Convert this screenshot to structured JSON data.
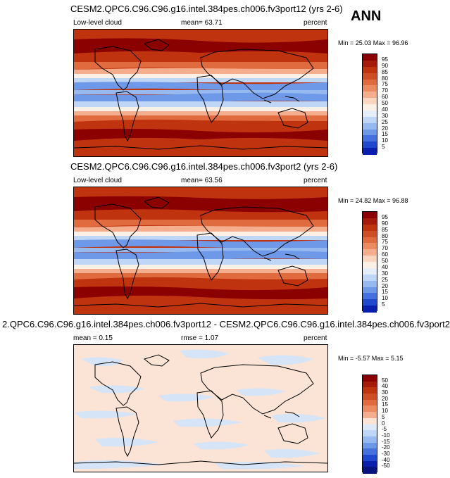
{
  "season": "ANN",
  "panels": [
    {
      "title": "CESM2.QPC6.C96.C96.g16.intel.384pes.ch006.fv3port12 (yrs 2-6)",
      "left_label": "Low-level cloud",
      "center_label": "mean=  63.71",
      "right_label": "percent",
      "minmax": "Min = 25.03 Max = 96.96",
      "colorbar_labels": [
        "95",
        "90",
        "85",
        "80",
        "75",
        "70",
        "60",
        "50",
        "40",
        "30",
        "25",
        "20",
        "15",
        "10",
        "5"
      ],
      "colorbar_colors": [
        "#8b0000",
        "#a51a08",
        "#c0330f",
        "#d04e25",
        "#e06b3e",
        "#ec8b62",
        "#f4ad8d",
        "#f9d6c0",
        "#fbf0e6",
        "#e4eef9",
        "#bfd6f6",
        "#96b9ef",
        "#6e98e8",
        "#4570de",
        "#1f48cf",
        "#0a1fae"
      ]
    },
    {
      "title": "CESM2.QPC6.C96.C96.g16.intel.384pes.ch006.fv3port2 (yrs 2-6)",
      "left_label": "Low-level cloud",
      "center_label": "mean=  63.56",
      "right_label": "percent",
      "minmax": "Min = 24.82 Max = 96.88",
      "colorbar_labels": [
        "95",
        "90",
        "85",
        "80",
        "75",
        "70",
        "60",
        "50",
        "40",
        "30",
        "25",
        "20",
        "15",
        "10",
        "5"
      ],
      "colorbar_colors": [
        "#8b0000",
        "#a51a08",
        "#c0330f",
        "#d04e25",
        "#e06b3e",
        "#ec8b62",
        "#f4ad8d",
        "#f9d6c0",
        "#fbf0e6",
        "#e4eef9",
        "#bfd6f6",
        "#96b9ef",
        "#6e98e8",
        "#4570de",
        "#1f48cf",
        "#0a1fae"
      ]
    },
    {
      "title": "2.QPC6.C96.C96.g16.intel.384pes.ch006.fv3port12 - CESM2.QPC6.C96.C96.g16.intel.384pes.ch006.fv3port2",
      "left_label": "mean =  0.15",
      "center_label": "rmse =  1.07",
      "right_label": "percent",
      "minmax": "Min = -5.57 Max =  5.15",
      "colorbar_labels": [
        "50",
        "40",
        "30",
        "20",
        "15",
        "10",
        "5",
        "0",
        "-5",
        "-10",
        "-15",
        "-20",
        "-30",
        "-40",
        "-50"
      ],
      "colorbar_colors": [
        "#8b0000",
        "#a51a08",
        "#c0330f",
        "#d04e25",
        "#e06b3e",
        "#ec8b62",
        "#f4ad8d",
        "#fbe4d5",
        "#dde9f8",
        "#bfd6f6",
        "#96b9ef",
        "#6e98e8",
        "#4570de",
        "#1f48cf",
        "#0a1fae",
        "#06137f"
      ]
    }
  ],
  "colors": {
    "dark_red": "#8b0000",
    "red": "#c0330f",
    "orange_red": "#e06b3e",
    "light_blue": "#bfd6f6",
    "mid_blue": "#6e98e8",
    "diff_bg": "#fbe4d5",
    "diff_blue": "#d6e4f7"
  }
}
